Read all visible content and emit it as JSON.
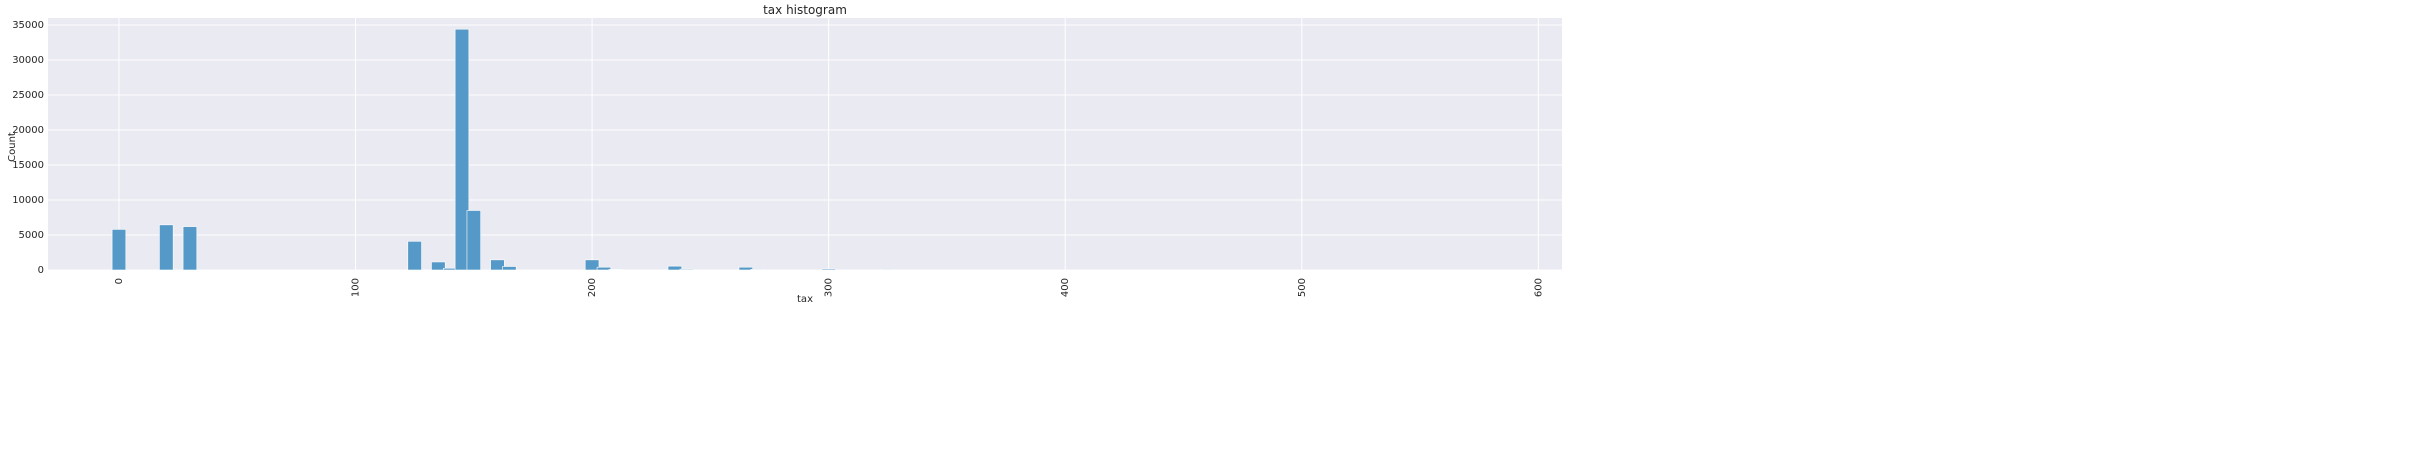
{
  "chart_data": {
    "type": "bar",
    "title": "tax histogram",
    "xlabel": "tax",
    "ylabel": "Count",
    "xlim": [
      -30,
      610
    ],
    "ylim": [
      0,
      36000
    ],
    "xticks": [
      0,
      100,
      200,
      300,
      400,
      500,
      600
    ],
    "yticks": [
      0,
      5000,
      10000,
      15000,
      20000,
      25000,
      30000,
      35000
    ],
    "grid": true,
    "bar_color": "#5499C7",
    "background_color": "#EAEAF2",
    "bin_width": 5.8,
    "bins": [
      {
        "x": 0,
        "count": 5800
      },
      {
        "x": 20,
        "count": 6450
      },
      {
        "x": 30,
        "count": 6200
      },
      {
        "x": 125,
        "count": 4100
      },
      {
        "x": 135,
        "count": 1150
      },
      {
        "x": 140,
        "count": 250
      },
      {
        "x": 145,
        "count": 34400
      },
      {
        "x": 150,
        "count": 8500
      },
      {
        "x": 160,
        "count": 1450
      },
      {
        "x": 165,
        "count": 500
      },
      {
        "x": 200,
        "count": 1450
      },
      {
        "x": 205,
        "count": 400
      },
      {
        "x": 210,
        "count": 80
      },
      {
        "x": 235,
        "count": 550
      },
      {
        "x": 240,
        "count": 120
      },
      {
        "x": 265,
        "count": 400
      },
      {
        "x": 270,
        "count": 100
      },
      {
        "x": 300,
        "count": 150
      },
      {
        "x": 325,
        "count": 100
      }
    ]
  }
}
